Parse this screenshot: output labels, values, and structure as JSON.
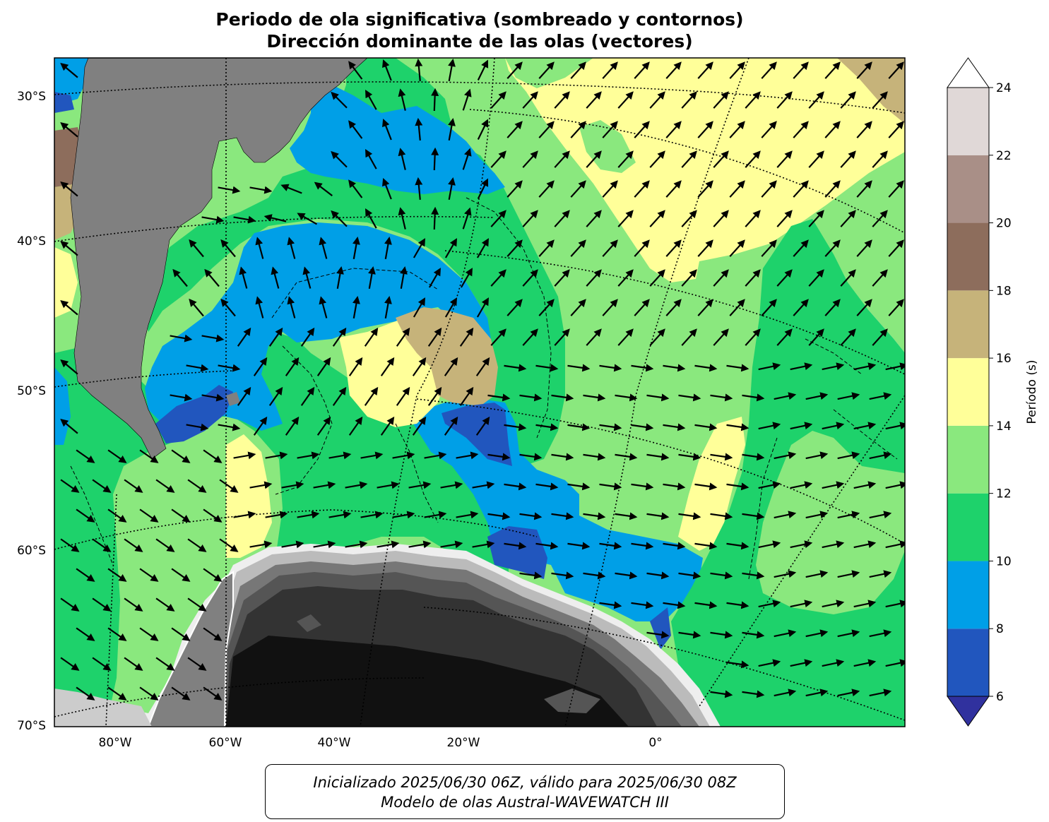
{
  "title": {
    "line1": "Periodo de ola significativa (sombreado y contornos)",
    "line2": "Dirección dominante de las olas (vectores)"
  },
  "map": {
    "lat_labels": [
      "30°S",
      "40°S",
      "50°S",
      "60°S",
      "70°S"
    ],
    "lon_labels": [
      "80°W",
      "60°W",
      "40°W",
      "20°W",
      "0°"
    ],
    "land_color": "#808080",
    "antarctica_colors": [
      "#111111",
      "#333333",
      "#555555",
      "#777777",
      "#999999",
      "#bbbbbb",
      "#dddddd"
    ]
  },
  "colorbar": {
    "label": "Período (s)",
    "ticks": [
      "6",
      "8",
      "10",
      "12",
      "14",
      "16",
      "18",
      "20",
      "22",
      "24"
    ],
    "bins": [
      {
        "min": 6,
        "max": 8,
        "color": "#2156be"
      },
      {
        "min": 8,
        "max": 10,
        "color": "#009fe7"
      },
      {
        "min": 10,
        "max": 12,
        "color": "#1ed26b"
      },
      {
        "min": 12,
        "max": 14,
        "color": "#8ae87e"
      },
      {
        "min": 14,
        "max": 16,
        "color": "#ffff99"
      },
      {
        "min": 16,
        "max": 18,
        "color": "#c6b37a"
      },
      {
        "min": 18,
        "max": 20,
        "color": "#8d6d5c"
      },
      {
        "min": 20,
        "max": 22,
        "color": "#a98f87"
      },
      {
        "min": 22,
        "max": 24,
        "color": "#e0d8d7"
      }
    ],
    "under_color": "#30319e",
    "over_color": "#ffffff"
  },
  "footer": {
    "line1": "Inicializado 2025/06/30 06Z, válido para 2025/06/30 08Z",
    "line2": "Modelo de olas Austral-WAVEWATCH III"
  }
}
